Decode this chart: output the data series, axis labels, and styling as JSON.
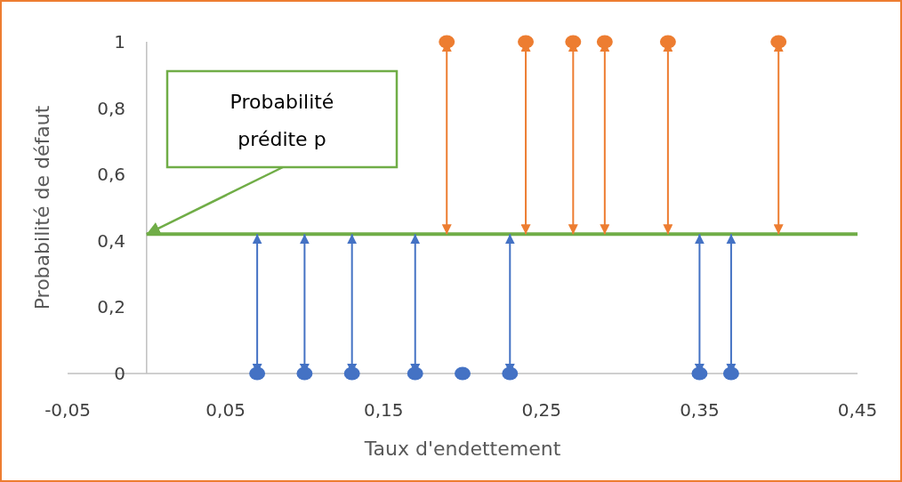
{
  "chart_data": {
    "type": "scatter",
    "xlabel": "Taux d'endettement",
    "ylabel": "Probabilité de défaut",
    "xlim": [
      -0.05,
      0.45
    ],
    "xticks": [
      {
        "value": -0.05,
        "label": "-0,05"
      },
      {
        "value": 0.05,
        "label": "0,05"
      },
      {
        "value": 0.15,
        "label": "0,15"
      },
      {
        "value": 0.25,
        "label": "0,25"
      },
      {
        "value": 0.35,
        "label": "0,35"
      },
      {
        "value": 0.45,
        "label": "0,45"
      }
    ],
    "ylim": [
      0,
      1
    ],
    "yticks": [
      {
        "value": 0,
        "label": "0"
      },
      {
        "value": 0.2,
        "label": "0,2"
      },
      {
        "value": 0.4,
        "label": "0,4"
      },
      {
        "value": 0.6,
        "label": "0,6"
      },
      {
        "value": 0.8,
        "label": "0,8"
      },
      {
        "value": 1,
        "label": "1"
      }
    ],
    "marker": "circle",
    "grid": false,
    "series": [
      {
        "color": "#4472c4",
        "x": [
          0.07,
          0.1,
          0.13,
          0.17,
          0.2,
          0.23,
          0.35,
          0.37
        ],
        "values": [
          0,
          0,
          0,
          0,
          0,
          0,
          0,
          0
        ],
        "errors": [
          [
            0,
            0.42
          ],
          [
            0,
            0.42
          ],
          [
            0,
            0.42
          ],
          [
            0,
            0.42
          ],
          null,
          [
            0,
            0.42
          ],
          [
            0,
            0.42
          ],
          [
            0,
            0.42
          ]
        ]
      },
      {
        "color": "#ed7d31",
        "x": [
          0.19,
          0.24,
          0.27,
          0.29,
          0.33,
          0.4
        ],
        "values": [
          1,
          1,
          1,
          1,
          1,
          1
        ],
        "errors": [
          [
            0.42,
            1
          ],
          [
            0.42,
            1
          ],
          [
            0.42,
            1
          ],
          [
            0.42,
            1
          ],
          [
            0.42,
            1
          ],
          [
            0.42,
            1
          ]
        ]
      }
    ],
    "ref_lines": [
      {
        "axis": "y",
        "value": 0.42,
        "color": "#70ad47"
      }
    ],
    "annotations": [
      {
        "text": "Probabilité prédite p",
        "x": 0,
        "y": 0.42
      }
    ]
  }
}
